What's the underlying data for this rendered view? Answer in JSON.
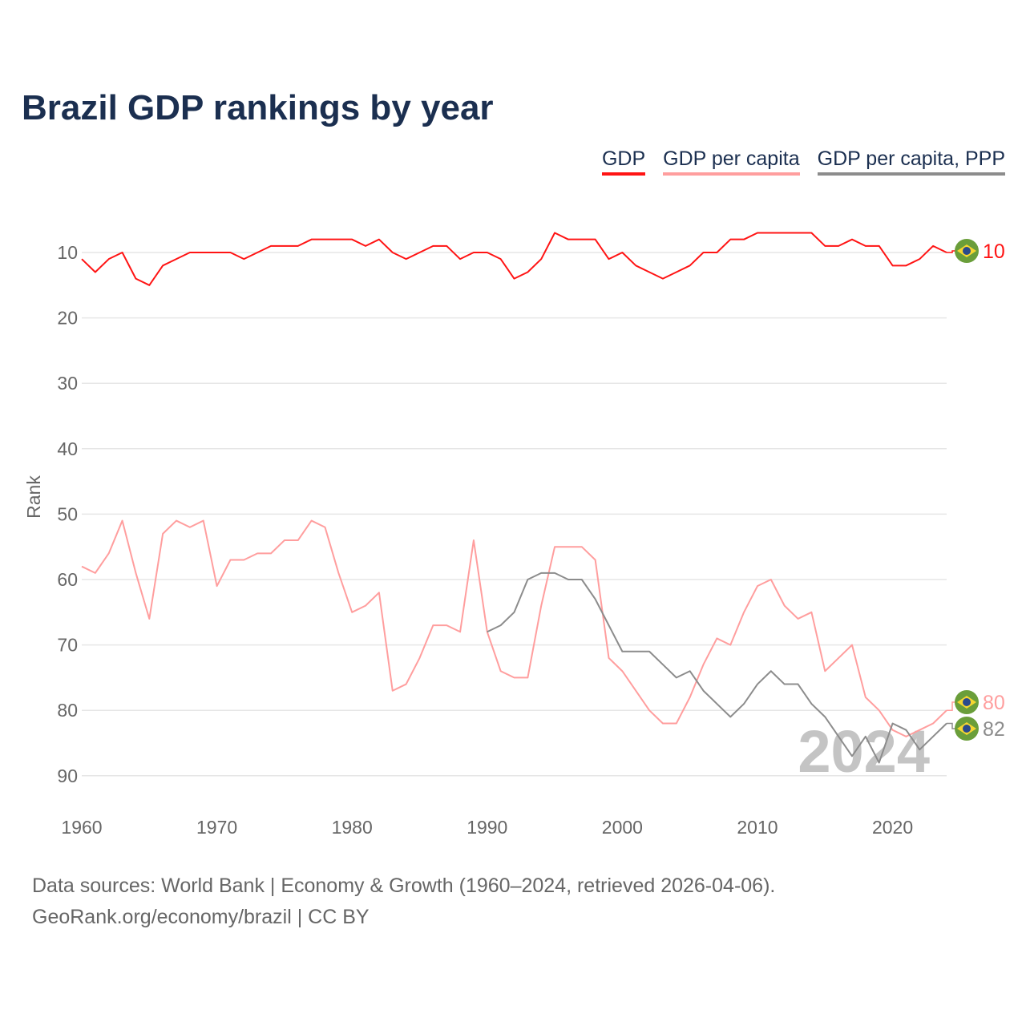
{
  "title": "Brazil GDP rankings by year",
  "legend": [
    "GDP",
    "GDP per capita",
    "GDP per capita, PPP"
  ],
  "footer": {
    "line1": "Data sources: World Bank | Economy & Growth (1960–2024, retrieved 2026-04-06).",
    "line2": "GeoRank.org/economy/brazil | CC BY"
  },
  "chart_data": {
    "type": "line",
    "title": "Brazil GDP rankings by year",
    "ylabel": "Rank",
    "xlabel": "",
    "xlim": [
      1960,
      2024
    ],
    "ylim": [
      90,
      5
    ],
    "y_inverted": true,
    "grid": true,
    "legend_position": "top-right",
    "x_ticks": [
      "1960",
      "1970",
      "1980",
      "1990",
      "2000",
      "2010",
      "2020"
    ],
    "y_ticks": [
      "10",
      "20",
      "30",
      "40",
      "50",
      "60",
      "70",
      "80",
      "90"
    ],
    "current_year_label": "2024",
    "series": [
      {
        "name": "GDP",
        "color": "#ff1414",
        "start_year": 1960,
        "values": [
          11,
          13,
          11,
          10,
          14,
          15,
          12,
          11,
          10,
          10,
          10,
          10,
          11,
          10,
          9,
          9,
          9,
          8,
          8,
          8,
          8,
          9,
          8,
          10,
          11,
          10,
          9,
          9,
          11,
          10,
          10,
          11,
          14,
          13,
          11,
          7,
          8,
          8,
          8,
          11,
          10,
          12,
          13,
          14,
          13,
          12,
          10,
          10,
          8,
          8,
          7,
          7,
          7,
          7,
          7,
          9,
          9,
          8,
          9,
          9,
          12,
          12,
          11,
          9,
          10
        ],
        "end_label": "10"
      },
      {
        "name": "GDP per capita",
        "color": "#ff9e9e",
        "start_year": 1960,
        "values": [
          58,
          59,
          56,
          51,
          59,
          66,
          53,
          51,
          52,
          51,
          61,
          57,
          57,
          56,
          56,
          54,
          54,
          51,
          52,
          59,
          65,
          64,
          62,
          77,
          76,
          72,
          67,
          67,
          68,
          54,
          68,
          74,
          75,
          75,
          64,
          55,
          55,
          55,
          57,
          72,
          74,
          77,
          80,
          82,
          82,
          78,
          73,
          69,
          70,
          65,
          61,
          60,
          64,
          66,
          65,
          74,
          72,
          70,
          78,
          80,
          83,
          84,
          83,
          82,
          80
        ],
        "end_label": "80"
      },
      {
        "name": "GDP per capita, PPP",
        "color": "#8c8c8c",
        "start_year": 1990,
        "values": [
          68,
          67,
          65,
          60,
          59,
          59,
          60,
          60,
          63,
          67,
          71,
          71,
          71,
          73,
          75,
          74,
          77,
          79,
          81,
          79,
          76,
          74,
          76,
          76,
          79,
          81,
          84,
          87,
          84,
          88,
          82,
          83,
          86,
          84,
          82
        ],
        "end_label": "82"
      }
    ]
  }
}
